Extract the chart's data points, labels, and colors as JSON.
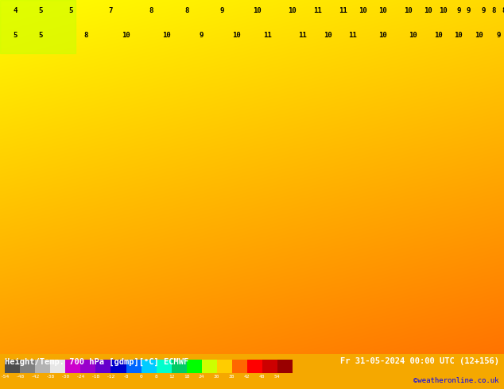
{
  "title_left": "Height/Temp. 700 hPa [gdmp][°C] ECMWF",
  "title_right": "Fr 31-05-2024 00:00 UTC (12+156)",
  "credit": "©weatheronline.co.uk",
  "colorbar_values": [
    -54,
    -48,
    -42,
    -38,
    -30,
    -24,
    -18,
    -12,
    -8,
    0,
    8,
    12,
    18,
    24,
    30,
    38,
    42,
    48,
    54
  ],
  "colorbar_tick_labels": [
    "-54",
    "-48",
    "-42",
    "-38",
    "-30",
    "-24",
    "-18",
    "-12",
    "-8",
    "0",
    "8",
    "12",
    "18",
    "24",
    "30",
    "38",
    "42",
    "48",
    "54"
  ],
  "colorbar_colors": [
    "#4d4d4d",
    "#808080",
    "#b3b3b3",
    "#e6e6e6",
    "#cc00cc",
    "#9900cc",
    "#6600cc",
    "#0000cc",
    "#0066ff",
    "#00ccff",
    "#00ffcc",
    "#00cc66",
    "#00ff00",
    "#ccff00",
    "#ffcc00",
    "#ff6600",
    "#ff0000",
    "#cc0000",
    "#990000"
  ],
  "bg_color": "#f5a800",
  "map_bg_gradient": [
    "#ffff00",
    "#ffcc00",
    "#ff9900",
    "#ff6600"
  ],
  "text_color": "#000000",
  "title_bg": "#000000",
  "bottom_bar_bg": "#000000",
  "bottom_bar_text": "#ffffff",
  "credit_color": "#0000ff",
  "figsize": [
    6.34,
    4.9
  ],
  "dpi": 100
}
